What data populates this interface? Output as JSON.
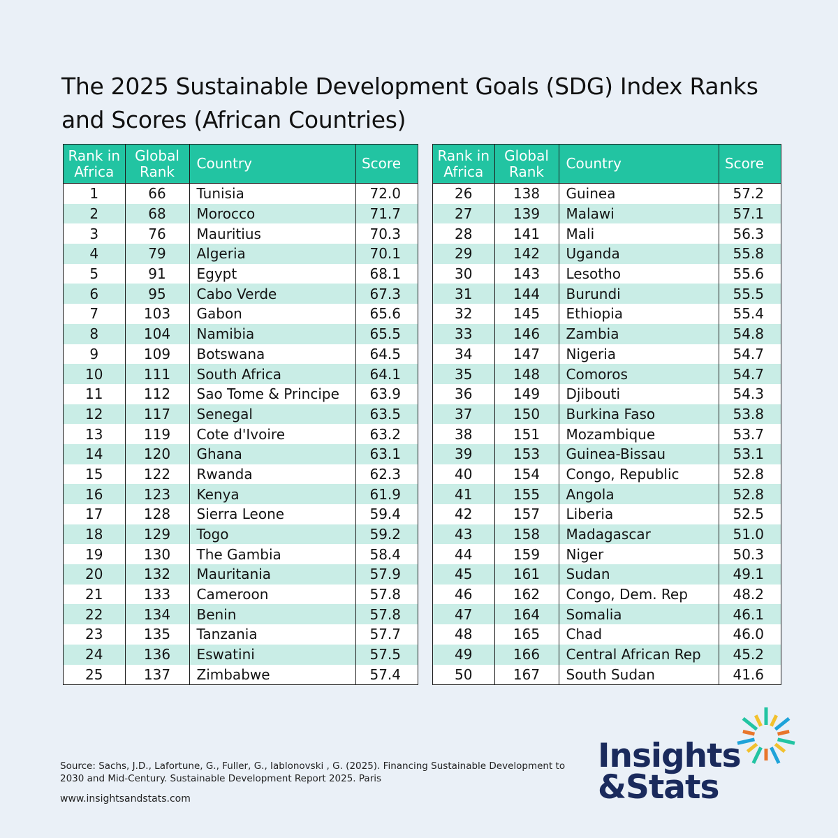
{
  "title": "The 2025 Sustainable Development Goals (SDG) Index Ranks and Scores (African Countries)",
  "headers": {
    "rank_africa": [
      "Rank in",
      "Africa"
    ],
    "global_rank": [
      "Global",
      "Rank"
    ],
    "country": "Country",
    "score": "Score"
  },
  "chart_data": {
    "type": "table",
    "columns": [
      "Rank in Africa",
      "Global Rank",
      "Country",
      "Score"
    ],
    "rows": [
      [
        1,
        66,
        "Tunisia",
        "72.0"
      ],
      [
        2,
        68,
        "Morocco",
        "71.7"
      ],
      [
        3,
        76,
        "Mauritius",
        "70.3"
      ],
      [
        4,
        79,
        "Algeria",
        "70.1"
      ],
      [
        5,
        91,
        "Egypt",
        "68.1"
      ],
      [
        6,
        95,
        "Cabo Verde",
        "67.3"
      ],
      [
        7,
        103,
        "Gabon",
        "65.6"
      ],
      [
        8,
        104,
        "Namibia",
        "65.5"
      ],
      [
        9,
        109,
        "Botswana",
        "64.5"
      ],
      [
        10,
        111,
        "South Africa",
        "64.1"
      ],
      [
        11,
        112,
        "Sao Tome & Principe",
        "63.9"
      ],
      [
        12,
        117,
        "Senegal",
        "63.5"
      ],
      [
        13,
        119,
        "Cote d'Ivoire",
        "63.2"
      ],
      [
        14,
        120,
        "Ghana",
        "63.1"
      ],
      [
        15,
        122,
        "Rwanda",
        "62.3"
      ],
      [
        16,
        123,
        "Kenya",
        "61.9"
      ],
      [
        17,
        128,
        "Sierra Leone",
        "59.4"
      ],
      [
        18,
        129,
        "Togo",
        "59.2"
      ],
      [
        19,
        130,
        "The Gambia",
        "58.4"
      ],
      [
        20,
        132,
        "Mauritania",
        "57.9"
      ],
      [
        21,
        133,
        "Cameroon",
        "57.8"
      ],
      [
        22,
        134,
        "Benin",
        "57.8"
      ],
      [
        23,
        135,
        "Tanzania",
        "57.7"
      ],
      [
        24,
        136,
        "Eswatini",
        "57.5"
      ],
      [
        25,
        137,
        "Zimbabwe",
        "57.4"
      ],
      [
        26,
        138,
        "Guinea",
        "57.2"
      ],
      [
        27,
        139,
        "Malawi",
        "57.1"
      ],
      [
        28,
        141,
        "Mali",
        "56.3"
      ],
      [
        29,
        142,
        "Uganda",
        "55.8"
      ],
      [
        30,
        143,
        "Lesotho",
        "55.6"
      ],
      [
        31,
        144,
        "Burundi",
        "55.5"
      ],
      [
        32,
        145,
        "Ethiopia",
        "55.4"
      ],
      [
        33,
        146,
        "Zambia",
        "54.8"
      ],
      [
        34,
        147,
        "Nigeria",
        "54.7"
      ],
      [
        35,
        148,
        "Comoros",
        "54.7"
      ],
      [
        36,
        149,
        "Djibouti",
        "54.3"
      ],
      [
        37,
        150,
        "Burkina Faso",
        "53.8"
      ],
      [
        38,
        151,
        "Mozambique",
        "53.7"
      ],
      [
        39,
        153,
        "Guinea-Bissau",
        "53.1"
      ],
      [
        40,
        154,
        "Congo, Republic",
        "52.8"
      ],
      [
        41,
        155,
        "Angola",
        "52.8"
      ],
      [
        42,
        157,
        "Liberia",
        "52.5"
      ],
      [
        43,
        158,
        "Madagascar",
        "51.0"
      ],
      [
        44,
        159,
        "Niger",
        "50.3"
      ],
      [
        45,
        161,
        "Sudan",
        "49.1"
      ],
      [
        46,
        162,
        "Congo, Dem. Rep",
        "48.2"
      ],
      [
        47,
        164,
        "Somalia",
        "46.1"
      ],
      [
        48,
        165,
        "Chad",
        "46.0"
      ],
      [
        49,
        166,
        "Central African Rep",
        "45.2"
      ],
      [
        50,
        167,
        "South Sudan",
        "41.6"
      ]
    ]
  },
  "source": "Source: Sachs, J.D., Lafortune, G., Fuller, G., Iablonovski , G. (2025). Financing Sustainable Development to 2030 and Mid-Century. Sustainable Development Report 2025. Paris",
  "website": "www.insightsandstats.com",
  "logo": {
    "line1": "Insights",
    "line2": "&Stats",
    "text_color": "#1a2a5c",
    "burst_colors": [
      "#22c4a2",
      "#f2c12e",
      "#1fa3d9",
      "#e8762c"
    ]
  },
  "colors": {
    "header_bg": "#22c4a2",
    "stripe": "#c9ede6",
    "background": "#eaf0f7"
  }
}
